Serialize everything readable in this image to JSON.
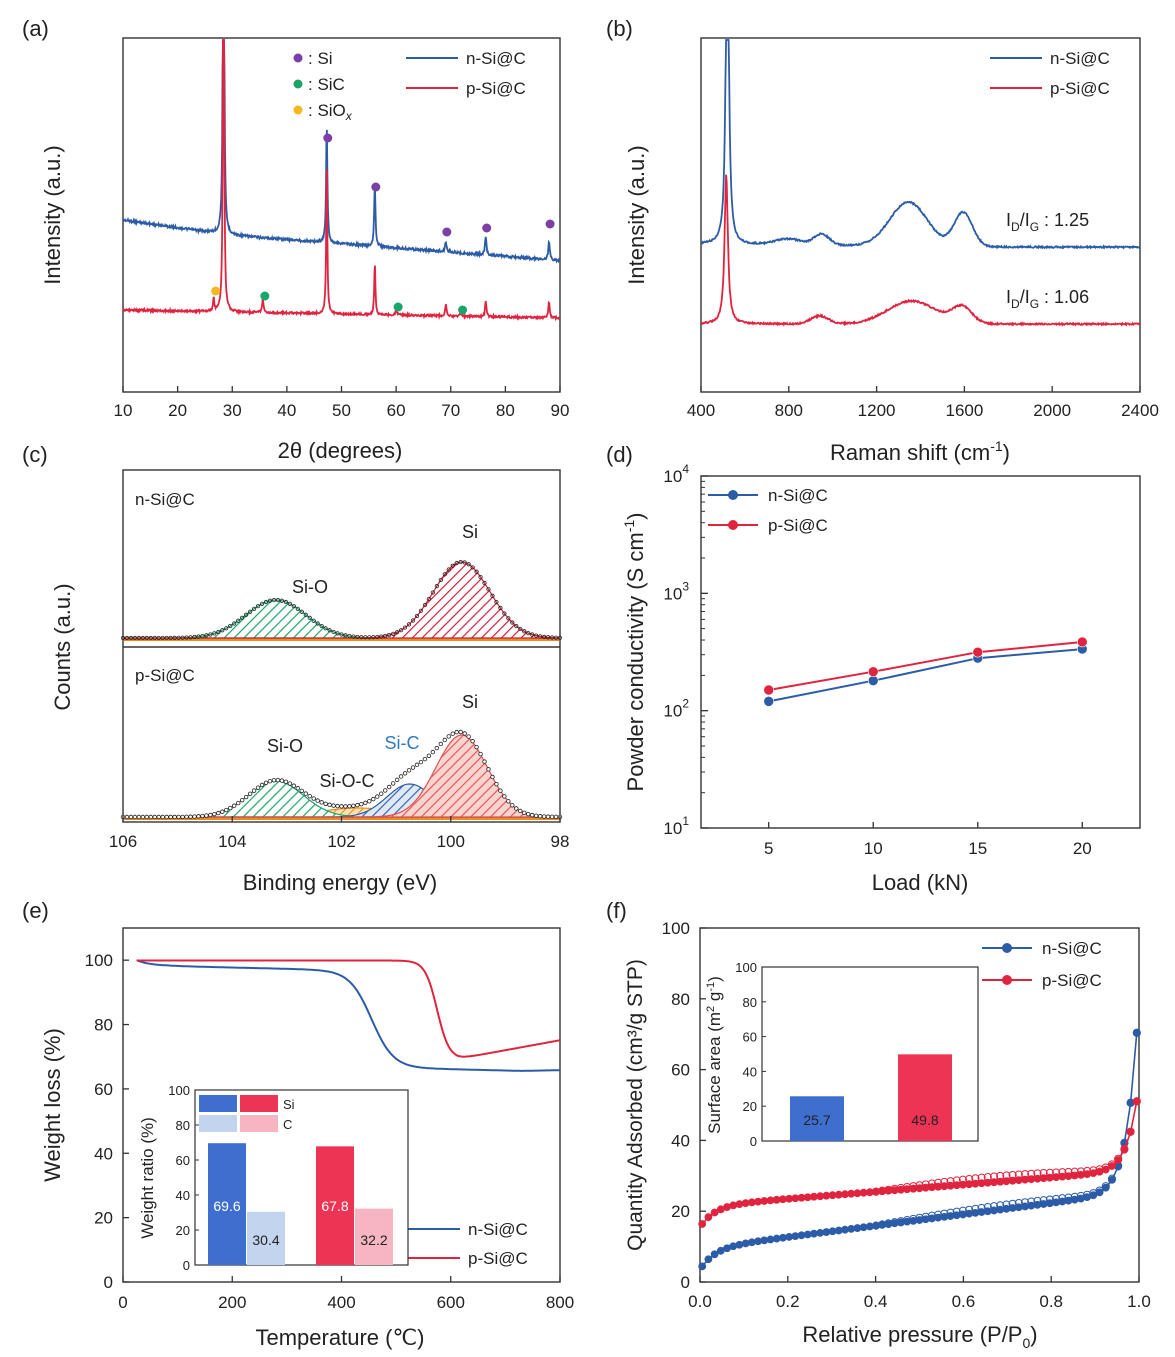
{
  "colors": {
    "blue": "#2c5ca8",
    "red": "#e0243f",
    "purple": "#7b3fa8",
    "green": "#1aa66a",
    "orange": "#f5b820",
    "axis": "#333333"
  },
  "chart_data": [
    {
      "panel": "(a)",
      "type": "line",
      "xlabel": "2θ (degrees)",
      "ylabel": "Intensity (a.u.)",
      "xlim": [
        10,
        90
      ],
      "xticks": [
        "10",
        "20",
        "30",
        "40",
        "50",
        "60",
        "70",
        "80",
        "90"
      ],
      "series": [
        {
          "name": "n-Si@C"
        },
        {
          "name": "p-Si@C"
        }
      ],
      "markers": [
        {
          "label": ": Si",
          "color": "purple",
          "positions": [
            47.3,
            56.1,
            69.1,
            76.4,
            88.0
          ]
        },
        {
          "label": ": SiC",
          "color": "green",
          "positions": [
            35.6,
            60.0,
            71.8
          ]
        },
        {
          "label": ": SiO",
          "sub": "x",
          "color": "orange",
          "positions": [
            26.6
          ]
        }
      ]
    },
    {
      "panel": "(b)",
      "type": "line",
      "xlabel": "Raman shift (cm",
      "xlabel_sup": "-1",
      "xlabel_end": ")",
      "ylabel": "Intensity (a.u.)",
      "xlim": [
        400,
        2400
      ],
      "xticks": [
        "400",
        "800",
        "1200",
        "1600",
        "2000",
        "2400"
      ],
      "series": [
        {
          "name": "n-Si@C"
        },
        {
          "name": "p-Si@C"
        }
      ],
      "annotations": [
        {
          "prefix": "I",
          "sub1": "D",
          "mid": "/I",
          "sub2": "G",
          "value": " : 1.25"
        },
        {
          "prefix": "I",
          "sub1": "D",
          "mid": "/I",
          "sub2": "G",
          "value": " : 1.06"
        }
      ]
    },
    {
      "panel": "(c)",
      "type": "area",
      "xlabel": "Binding energy (eV)",
      "ylabel": "Counts (a.u.)",
      "xlim": [
        106,
        98
      ],
      "xticks": [
        "106",
        "104",
        "102",
        "100",
        "98"
      ],
      "subpanels": [
        {
          "name": "n-Si@C",
          "peaks": [
            {
              "label": "Si-O",
              "center": 103.2
            },
            {
              "label": "Si",
              "center": 99.8
            }
          ]
        },
        {
          "name": "p-Si@C",
          "peaks": [
            {
              "label": "Si-O",
              "center": 103.2
            },
            {
              "label": "Si-O-C",
              "center": 101.8
            },
            {
              "label": "Si-C",
              "center": 100.7
            },
            {
              "label": "Si",
              "center": 99.8
            }
          ]
        }
      ]
    },
    {
      "panel": "(d)",
      "type": "line",
      "yscale": "log",
      "xlabel": "Load (kN)",
      "ylabel": "Powder conductivity (S cm",
      "ylabel_sup": "-1",
      "ylabel_end": ")",
      "x": [
        5,
        10,
        15,
        20
      ],
      "xticks": [
        "5",
        "10",
        "15",
        "20"
      ],
      "ylim": [
        10,
        10000
      ],
      "yticks": [
        {
          "base": "10",
          "exp": "1"
        },
        {
          "base": "10",
          "exp": "2"
        },
        {
          "base": "10",
          "exp": "3"
        },
        {
          "base": "10",
          "exp": "4"
        }
      ],
      "series": [
        {
          "name": "n-Si@C",
          "values": [
            120,
            180,
            280,
            335
          ]
        },
        {
          "name": "p-Si@C",
          "values": [
            150,
            215,
            315,
            385
          ]
        }
      ]
    },
    {
      "panel": "(e)",
      "type": "line",
      "xlabel": "Temperature (℃)",
      "ylabel": "Weight loss (%)",
      "xlim": [
        0,
        800
      ],
      "ylim": [
        0,
        110
      ],
      "xticks": [
        "0",
        "200",
        "400",
        "600",
        "800"
      ],
      "yticks": [
        "0",
        "20",
        "40",
        "60",
        "80",
        "100"
      ],
      "series": [
        {
          "name": "n-Si@C"
        },
        {
          "name": "p-Si@C"
        }
      ],
      "inset": {
        "type": "bar",
        "ylabel": "Weight ratio (%)",
        "ylim": [
          0,
          100
        ],
        "yticks": [
          "0",
          "20",
          "40",
          "60",
          "80",
          "100"
        ],
        "legend": [
          "Si",
          "C"
        ],
        "bars": [
          {
            "series": "n-Si@C",
            "component": "Si",
            "value": 69.6,
            "label": "69.6"
          },
          {
            "series": "n-Si@C",
            "component": "C",
            "value": 30.4,
            "label": "30.4"
          },
          {
            "series": "p-Si@C",
            "component": "Si",
            "value": 67.8,
            "label": "67.8"
          },
          {
            "series": "p-Si@C",
            "component": "C",
            "value": 32.2,
            "label": "32.2"
          }
        ]
      }
    },
    {
      "panel": "(f)",
      "type": "scatter",
      "xlabel": "Relative pressure (P/P",
      "xlabel_sub": "0",
      "xlabel_end": ")",
      "ylabel": "Quantity Adsorbed (cm³/g STP)",
      "xlim": [
        0,
        1
      ],
      "ylim": [
        0,
        100
      ],
      "xticks": [
        "0.0",
        "0.2",
        "0.4",
        "0.6",
        "0.8",
        "1.0"
      ],
      "yticks": [
        "0",
        "20",
        "40",
        "60",
        "80",
        "100"
      ],
      "series": [
        {
          "name": "n-Si@C"
        },
        {
          "name": "p-Si@C"
        }
      ],
      "inset": {
        "type": "bar",
        "ylabel": "Surface area (m",
        "ylabel_sup": "2",
        "ylabel_mid": " g",
        "ylabel_sup2": "-1",
        "ylabel_end": ")",
        "ylim": [
          0,
          100
        ],
        "yticks": [
          "0",
          "20",
          "40",
          "60",
          "80",
          "100"
        ],
        "bars": [
          {
            "series": "n-Si@C",
            "value": 25.7,
            "label": "25.7"
          },
          {
            "series": "p-Si@C",
            "value": 49.8,
            "label": "49.8"
          }
        ]
      }
    }
  ]
}
